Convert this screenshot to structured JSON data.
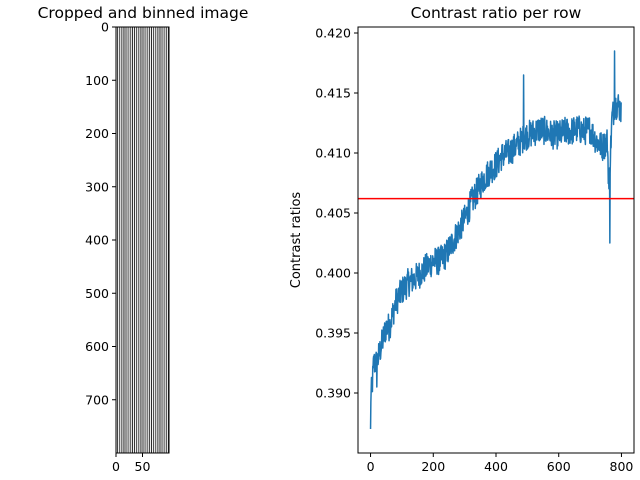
{
  "chart_data": [
    {
      "type": "heatmap",
      "title": "Cropped and binned image",
      "colormap": "gray",
      "stripe_columns": 100,
      "x_ticks": [
        0,
        50
      ],
      "y_ticks": [
        0,
        100,
        200,
        300,
        400,
        500,
        600,
        700
      ],
      "xlim": [
        0,
        100
      ],
      "ylim": [
        800,
        0
      ]
    },
    {
      "type": "line",
      "title": "Contrast ratio per row",
      "xlabel": "",
      "ylabel": "Contrast ratios",
      "xlim": [
        -40,
        840
      ],
      "ylim": [
        0.385,
        0.4205
      ],
      "x_ticks": [
        0,
        200,
        400,
        600,
        800
      ],
      "y_ticks": [
        0.39,
        0.395,
        0.4,
        0.405,
        0.41,
        0.415,
        0.42
      ],
      "line_color": "#1f77b4",
      "reference_line": {
        "y": 0.4062,
        "color": "#ff0000"
      },
      "series": [
        {
          "x": [
            0,
            5,
            10,
            20,
            30,
            40,
            50,
            60,
            80,
            100,
            120,
            140,
            160,
            180,
            200,
            220,
            240,
            260,
            280,
            300,
            320,
            340,
            360,
            380,
            400,
            420,
            440,
            460,
            480,
            500,
            520,
            540,
            560,
            580,
            600,
            620,
            640,
            660,
            680,
            700,
            720,
            740,
            755,
            760,
            765,
            770,
            780,
            790,
            799
          ],
          "y": [
            0.3895,
            0.3905,
            0.3925,
            0.3925,
            0.3935,
            0.3945,
            0.3955,
            0.3955,
            0.3975,
            0.3985,
            0.3992,
            0.3995,
            0.4,
            0.4005,
            0.401,
            0.401,
            0.4015,
            0.4025,
            0.4035,
            0.4045,
            0.4058,
            0.4068,
            0.4078,
            0.4085,
            0.409,
            0.4098,
            0.41,
            0.4105,
            0.411,
            0.4115,
            0.4117,
            0.412,
            0.4118,
            0.4115,
            0.4115,
            0.4118,
            0.4118,
            0.412,
            0.4118,
            0.412,
            0.411,
            0.4105,
            0.411,
            0.407,
            0.41,
            0.413,
            0.414,
            0.414,
            0.4135
          ],
          "jitter_amplitude": 0.0012,
          "sample_count": 800
        }
      ]
    }
  ]
}
